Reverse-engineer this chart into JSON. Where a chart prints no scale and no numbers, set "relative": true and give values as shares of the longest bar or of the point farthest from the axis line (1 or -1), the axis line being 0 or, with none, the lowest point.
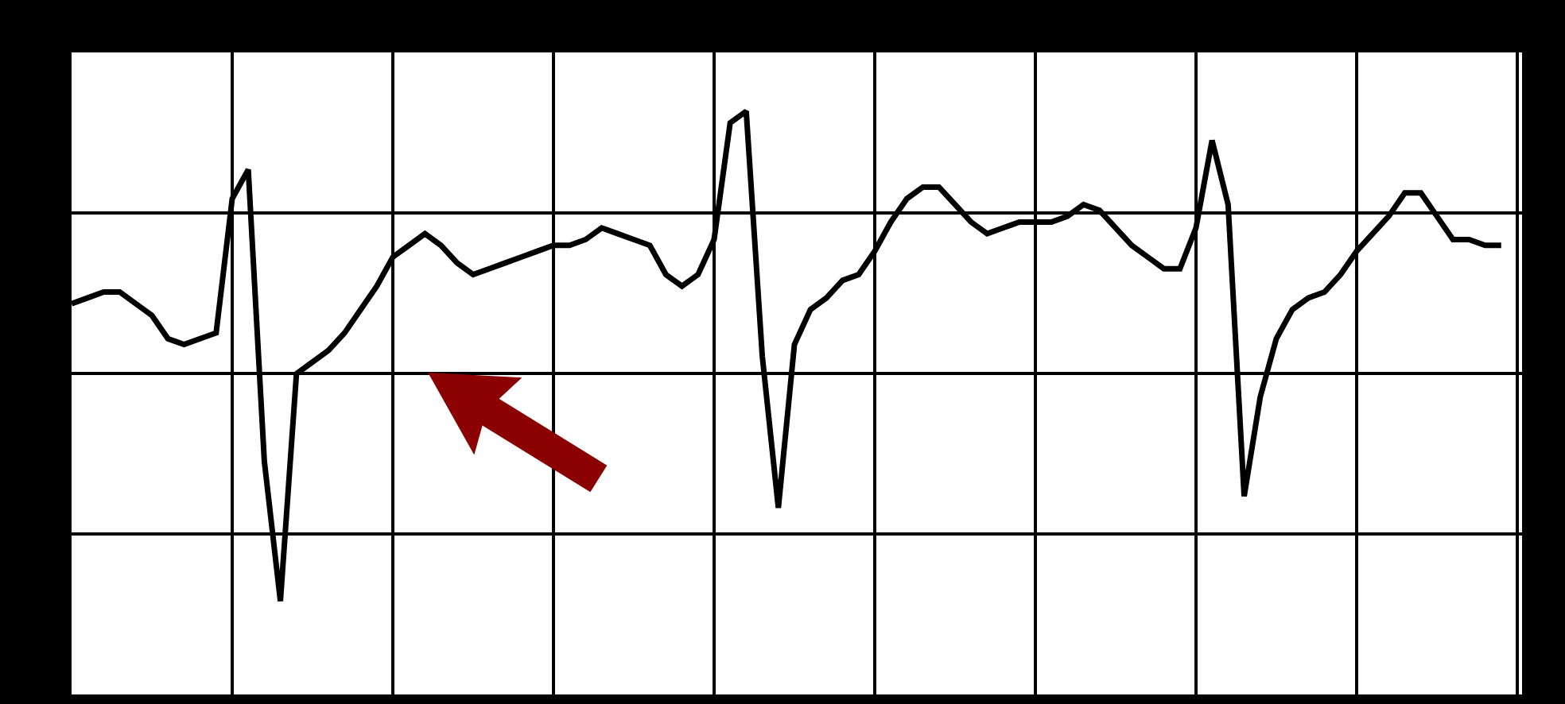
{
  "chart_data": {
    "type": "line",
    "relative": true,
    "grid": true,
    "legend": false,
    "marker": "none",
    "line_style": "solid",
    "tick_labels": false,
    "categories": [
      null,
      null,
      null,
      null,
      null,
      null,
      null,
      null,
      null,
      null,
      null,
      null,
      null,
      null,
      null,
      null,
      null,
      null,
      null,
      null,
      null,
      null,
      null,
      null,
      null,
      null,
      null,
      null,
      null,
      null,
      null,
      null,
      null,
      null,
      null,
      null,
      null,
      null,
      null,
      null,
      null,
      null,
      null,
      null,
      null,
      null,
      null,
      null,
      null,
      null,
      null,
      null,
      null,
      null,
      null,
      null,
      null,
      null,
      null,
      null,
      null,
      null,
      null,
      null,
      null,
      null,
      null,
      null,
      null,
      null,
      null,
      null,
      null,
      null,
      null,
      null,
      null,
      null,
      null,
      null,
      null,
      null,
      null,
      null,
      null,
      null,
      null,
      null,
      null,
      null
    ],
    "series": [
      {
        "color": "#000000",
        "values": [
          0.67,
          0.68,
          0.69,
          0.69,
          0.67,
          0.65,
          0.61,
          0.6,
          0.61,
          0.62,
          0.85,
          0.9,
          0.4,
          0.16,
          0.55,
          0.57,
          0.59,
          0.62,
          0.66,
          0.7,
          0.75,
          0.77,
          0.79,
          0.77,
          0.74,
          0.72,
          0.73,
          0.74,
          0.75,
          0.76,
          0.77,
          0.77,
          0.78,
          0.8,
          0.79,
          0.78,
          0.77,
          0.72,
          0.7,
          0.72,
          0.78,
          0.98,
          1,
          0.58,
          0.32,
          0.6,
          0.66,
          0.68,
          0.71,
          0.72,
          0.76,
          0.81,
          0.85,
          0.87,
          0.87,
          0.84,
          0.81,
          0.79,
          0.8,
          0.81,
          0.81,
          0.81,
          0.82,
          0.84,
          0.83,
          0.8,
          0.77,
          0.75,
          0.73,
          0.73,
          0.8,
          0.95,
          0.84,
          0.34,
          0.51,
          0.61,
          0.66,
          0.68,
          0.69,
          0.72,
          0.76,
          0.79,
          0.82,
          0.86,
          0.86,
          0.82,
          0.78,
          0.78,
          0.77,
          0.77
        ]
      }
    ]
  }
}
